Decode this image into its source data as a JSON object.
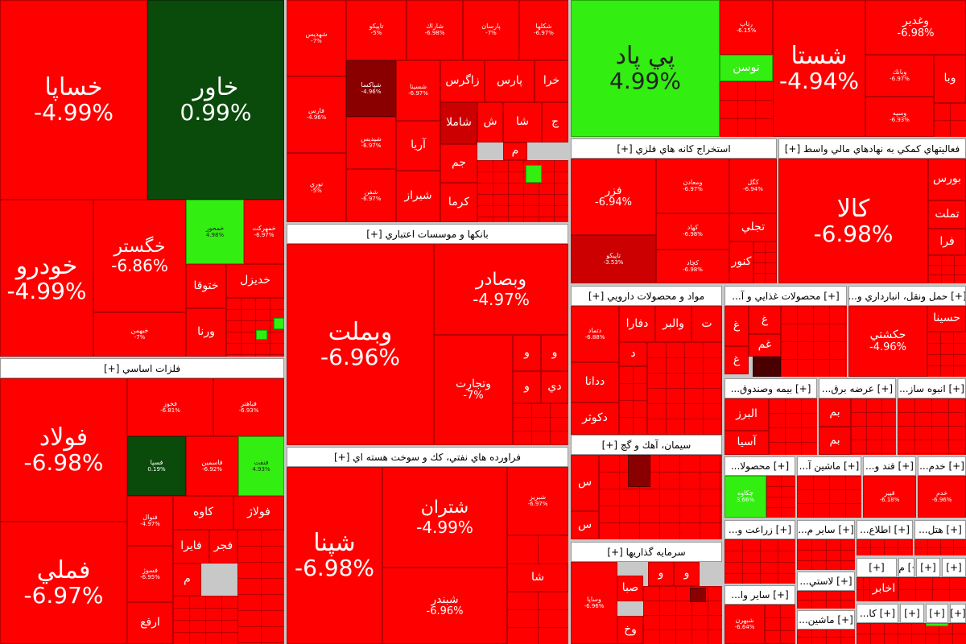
{
  "sectors": {
    "metals": "فلزات اساسي [+]",
    "banks": "بانكها و موسسات اعتباري [+]",
    "petroleum": "فراورده هاي نفتي، كك و سوخت هسته اي [+]",
    "mining": "استخراج كانه هاي فلزي [+]",
    "financial": "فعاليتهاي كمكي به نهادهاي مالي واسط [+]",
    "pharma": "مواد و محصولات دارويي [+]",
    "food": "[+] محصولات غذايي و آ...",
    "transport": "[+] حمل ونقل، انبارداري و...",
    "insurance": "[+] بيمه وصندوق...",
    "electricity": "[+] عرضه برق...",
    "building": "[+] انبوه ساز...",
    "cement": "سيمان، آهك و گچ [+]",
    "investment": "سرمايه گذاريها [+]",
    "s_mahsoula": "[+] محصولا...",
    "s_mashin": "[+] ماشين آ...",
    "s_ghand": "[+] قند و...",
    "s_khadam": "[+] خدم...",
    "s_zeraat": "[+] زراعت و...",
    "s_sayer_m": "[+] ساير م...",
    "s_ettela": "[+] اطلاع...",
    "s_hotel": "[+] هتل...",
    "s_m": "[+] م...",
    "s_plastic": "[+] لاستي...",
    "s_sayer_v": "[+] ساير وا...",
    "s_mashin2": "[+] ماشين...",
    "s_ka": "[+] كا...",
    "s_plus": "[+]"
  },
  "tiles": {
    "khasapa": {
      "name": "خساپا",
      "pct": "-4.99%"
    },
    "khavar": {
      "name": "خاور",
      "pct": "0.99%"
    },
    "khodro": {
      "name": "خودرو",
      "pct": "-4.99%"
    },
    "khgostar": {
      "name": "خگستر",
      "pct": "-6.86%"
    },
    "khmehvar": {
      "name": "خمحور",
      "pct": "4.98%"
    },
    "khmehrkat": {
      "name": "خمهركت",
      "pct": "-6.97%"
    },
    "khteva": {
      "name": "ختوقا"
    },
    "khdiz": {
      "name": "خديزل"
    },
    "khbahman": {
      "name": "خبهمن",
      "pct": "-7%"
    },
    "vorna": {
      "name": "ورنا"
    },
    "shahidis": {
      "name": "شهديس",
      "pct": "-7%"
    },
    "tapiko": {
      "name": "تاپيكو",
      "pct": "-5%"
    },
    "sharak": {
      "name": "شاراك",
      "pct": "-6.98%"
    },
    "parsan": {
      "name": "پارسان",
      "pct": "-7%"
    },
    "shakha": {
      "name": "شكلها",
      "pct": "-6.97%"
    },
    "shpamsa": {
      "name": "شپاكسا",
      "pct": "-4.96%"
    },
    "shsina": {
      "name": "شسينا",
      "pct": "-6.97%"
    },
    "zagros": {
      "name": "زاگرس"
    },
    "pars": {
      "name": "پارس"
    },
    "khra": {
      "name": "خرا"
    },
    "fars": {
      "name": "فارس",
      "pct": "-4.96%"
    },
    "shamla": {
      "name": "شاملا"
    },
    "sha": {
      "name": "ش"
    },
    "shaa": {
      "name": "شا"
    },
    "jam": {
      "name": "ج"
    },
    "shepdis": {
      "name": "شپديس",
      "pct": "-6.97%"
    },
    "arya": {
      "name": "آريا"
    },
    "jam2": {
      "name": "جم"
    },
    "m1": {
      "name": "م"
    },
    "shiraz": {
      "name": "شيراز"
    },
    "kerma": {
      "name": "كرما"
    },
    "noori": {
      "name": "نوري",
      "pct": "-5%"
    },
    "shfan": {
      "name": "شفن",
      "pct": "-6.97%"
    },
    "vbmellat": {
      "name": "وبملت",
      "pct": "-6.96%"
    },
    "vbsader": {
      "name": "وبصادر",
      "pct": "-4.97%"
    },
    "vtejarat": {
      "name": "وتجارت",
      "pct": "-7%"
    },
    "v1": {
      "name": "و"
    },
    "v2": {
      "name": "و"
    },
    "v3": {
      "name": "و"
    },
    "dey": {
      "name": "دي"
    },
    "fooolad": {
      "name": "فولاد",
      "pct": "-6.98%"
    },
    "fameli": {
      "name": "فملي",
      "pct": "-6.97%"
    },
    "fkhooz": {
      "name": "فخوز",
      "pct": "-6.81%"
    },
    "fbahonar": {
      "name": "فباهنر",
      "pct": "-6.93%"
    },
    "fsapa": {
      "name": "فسپا",
      "pct": "0.19%"
    },
    "fanoos": {
      "name": "فاسمين",
      "pct": "-6.92%"
    },
    "fnaft": {
      "name": "فنفت",
      "pct": "4.93%"
    },
    "fnoor": {
      "name": "فنوال",
      "pct": "-4.97%"
    },
    "kave": {
      "name": "كاوه"
    },
    "foolaj": {
      "name": "فولاژ"
    },
    "fasoj": {
      "name": "فسوژ",
      "pct": "-6.95%"
    },
    "faira": {
      "name": "فايرا"
    },
    "fajr": {
      "name": "فجر"
    },
    "fm": {
      "name": "م"
    },
    "arfa": {
      "name": "ارفع"
    },
    "shpana": {
      "name": "شپنا",
      "pct": "-6.98%"
    },
    "shetran": {
      "name": "شتران",
      "pct": "-4.99%"
    },
    "shbandar": {
      "name": "شبندر",
      "pct": "-6.96%"
    },
    "shbriz": {
      "name": "شبريز",
      "pct": "-6.97%"
    },
    "shaa2": {
      "name": "شا"
    },
    "peypad": {
      "name": "پي پاد",
      "pct": "4.99%"
    },
    "shasta": {
      "name": "شستا",
      "pct": "-4.94%"
    },
    "vaghadir": {
      "name": "وغدير",
      "pct": "-6.98%"
    },
    "rtap": {
      "name": "رتاپ",
      "pct": "-6.15%"
    },
    "toosan": {
      "name": "توسن"
    },
    "vabank": {
      "name": "وبانك",
      "pct": "-6.97%"
    },
    "vsapa": {
      "name": "وسپه",
      "pct": "-6.93%"
    },
    "vba": {
      "name": "وبا"
    },
    "fezar": {
      "name": "فزر",
      "pct": "-6.94%"
    },
    "vmaaden": {
      "name": "ومعادن",
      "pct": "-6.97%"
    },
    "kagol": {
      "name": "كگل",
      "pct": "-6.94%"
    },
    "kehad": {
      "name": "كهاد",
      "pct": "-6.98%"
    },
    "tapisko": {
      "name": "تاپيكو",
      "pct": "-3.53%"
    },
    "kchad": {
      "name": "كچاد",
      "pct": "-6.98%"
    },
    "tajli": {
      "name": "تجلي"
    },
    "knoor": {
      "name": "كنور"
    },
    "kala": {
      "name": "كالا",
      "pct": "-6.98%"
    },
    "boors": {
      "name": "بورس"
    },
    "tamlat": {
      "name": "تملت"
    },
    "fara": {
      "name": "فرا"
    },
    "dtamad": {
      "name": "دتماد",
      "pct": "-6.88%"
    },
    "vahelbar": {
      "name": "والبر"
    },
    "dfara": {
      "name": "دفارا"
    },
    "tt": {
      "name": "ت"
    },
    "dd1": {
      "name": "د"
    },
    "dana": {
      "name": "ددانا"
    },
    "dkoosar": {
      "name": "دكوثر"
    },
    "gha1": {
      "name": "غ"
    },
    "gha2": {
      "name": "غ"
    },
    "gham": {
      "name": "غم"
    },
    "gha3": {
      "name": "غ"
    },
    "hkashti": {
      "name": "حكشتي",
      "pct": "-4.96%"
    },
    "hasina": {
      "name": "حسينا"
    },
    "alborz": {
      "name": "البرز"
    },
    "asia": {
      "name": "آسيا"
    },
    "bm1": {
      "name": "بم"
    },
    "bm2": {
      "name": "بم"
    },
    "s1": {
      "name": "س"
    },
    "s2": {
      "name": "س"
    },
    "vsaba": {
      "name": "صبا"
    },
    "vasapa": {
      "name": "وساپا",
      "pct": "-6.96%"
    },
    "vkh": {
      "name": "وخ"
    },
    "vv1": {
      "name": "و"
    },
    "vv2": {
      "name": "و"
    },
    "chakave": {
      "name": "چكاوه",
      "pct": "3.66%"
    },
    "ghand1": {
      "name": "قپير",
      "pct": "-6.18%"
    },
    "khadam1": {
      "name": "خدم",
      "pct": "-6.96%"
    },
    "akhbar": {
      "name": "اخابر"
    },
    "shbhar": {
      "name": "شبهرن",
      "pct": "-6.64%"
    }
  }
}
